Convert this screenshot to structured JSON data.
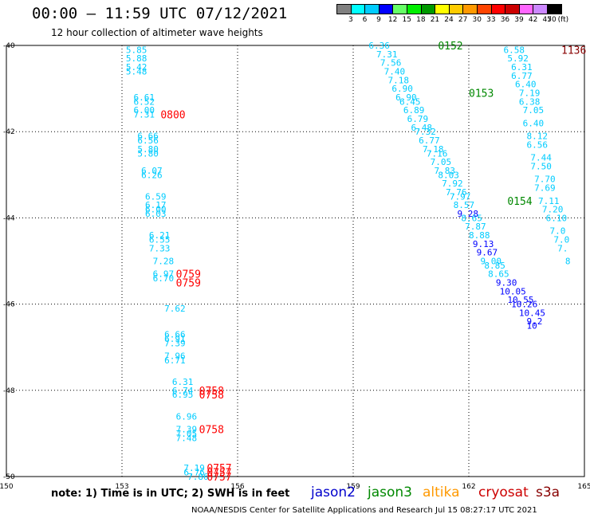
{
  "header": {
    "title": "00:00 – 11:59 UTC 07/12/2021",
    "subtitle": "12 hour collection of altimeter wave heights"
  },
  "colorbar": {
    "unit": "(ft)",
    "labels": [
      "3",
      "6",
      "9",
      "12",
      "15",
      "18",
      "21",
      "24",
      "27",
      "30",
      "33",
      "36",
      "39",
      "42",
      "45",
      "70"
    ],
    "colors": [
      "#808080",
      "#00ffff",
      "#00ccff",
      "#0000ff",
      "#66ff66",
      "#00ee00",
      "#009900",
      "#ffff00",
      "#ffcc00",
      "#ff9900",
      "#ff4400",
      "#ff0000",
      "#cc0000",
      "#ff66ff",
      "#cc88ff",
      "#000000"
    ]
  },
  "axes": {
    "x_ticks": [
      "150",
      "153",
      "156",
      "159",
      "162",
      "165"
    ],
    "y_ticks": [
      "-40",
      "-42",
      "-44",
      "-46",
      "-48",
      "-50"
    ]
  },
  "legend": [
    {
      "name": "jason2",
      "color": "#0000cc"
    },
    {
      "name": "jason3",
      "color": "#008800"
    },
    {
      "name": "altika",
      "color": "#ff9900"
    },
    {
      "name": "cryosat",
      "color": "#cc0000"
    },
    {
      "name": "s3a",
      "color": "#880000"
    }
  ],
  "footer": {
    "note": "note:  1) Time is in UTC;  2) SWH is in feet",
    "credit": "NOAA/NESDIS Center for Satellite Applications and Research    Jul 15 08:27:17 UTC 2021"
  },
  "chart_data": {
    "type": "scatter",
    "xlim": [
      150,
      165
    ],
    "ylim": [
      -50,
      -40
    ],
    "x_label_text": "",
    "y_label_text": "",
    "time_labels": [
      {
        "text": "0152",
        "lon": 161.2,
        "lat": -40.0,
        "color": "#008800"
      },
      {
        "text": "0153",
        "lon": 162.0,
        "lat": -41.1,
        "color": "#008800"
      },
      {
        "text": "0154",
        "lon": 163.0,
        "lat": -43.6,
        "color": "#008800"
      },
      {
        "text": "1136",
        "lon": 164.4,
        "lat": -40.1,
        "color": "#880000"
      },
      {
        "text": "0800",
        "lon": 154.0,
        "lat": -41.6,
        "color": "#ff0000"
      },
      {
        "text": "0759",
        "lon": 154.4,
        "lat": -45.3,
        "color": "#ff0000"
      },
      {
        "text": "0759",
        "lon": 154.4,
        "lat": -45.5,
        "color": "#ff0000"
      },
      {
        "text": "0758",
        "lon": 155.0,
        "lat": -48.0,
        "color": "#ff0000"
      },
      {
        "text": "0758",
        "lon": 155.0,
        "lat": -48.1,
        "color": "#ff0000"
      },
      {
        "text": "0758",
        "lon": 155.0,
        "lat": -48.9,
        "color": "#ff0000"
      },
      {
        "text": "0757",
        "lon": 155.2,
        "lat": -49.8,
        "color": "#ff0000"
      },
      {
        "text": "0757",
        "lon": 155.2,
        "lat": -49.9,
        "color": "#ff0000"
      },
      {
        "text": "0757",
        "lon": 155.2,
        "lat": -50.0,
        "color": "#ff0000"
      }
    ],
    "points": [
      {
        "v": "5.85",
        "lon": 153.1,
        "lat": -40.1,
        "color": "#00ccff"
      },
      {
        "v": "5.88",
        "lon": 153.1,
        "lat": -40.3,
        "color": "#00ccff"
      },
      {
        "v": "5.42",
        "lon": 153.1,
        "lat": -40.5,
        "color": "#00ccff"
      },
      {
        "v": "5.48",
        "lon": 153.1,
        "lat": -40.6,
        "color": "#00ccff"
      },
      {
        "v": "6.61",
        "lon": 153.3,
        "lat": -41.2,
        "color": "#00ccff"
      },
      {
        "v": "6.52",
        "lon": 153.3,
        "lat": -41.3,
        "color": "#00ccff"
      },
      {
        "v": "6.00",
        "lon": 153.3,
        "lat": -41.5,
        "color": "#00ccff"
      },
      {
        "v": "7.31",
        "lon": 153.3,
        "lat": -41.6,
        "color": "#00ccff"
      },
      {
        "v": "6.66",
        "lon": 153.4,
        "lat": -42.1,
        "color": "#00ccff"
      },
      {
        "v": "6.56",
        "lon": 153.4,
        "lat": -42.2,
        "color": "#00ccff"
      },
      {
        "v": "5.80",
        "lon": 153.4,
        "lat": -42.4,
        "color": "#00ccff"
      },
      {
        "v": "5.80",
        "lon": 153.4,
        "lat": -42.5,
        "color": "#00ccff"
      },
      {
        "v": "6.07",
        "lon": 153.5,
        "lat": -42.9,
        "color": "#00ccff"
      },
      {
        "v": "6.26",
        "lon": 153.5,
        "lat": -43.0,
        "color": "#00ccff"
      },
      {
        "v": "6.59",
        "lon": 153.6,
        "lat": -43.5,
        "color": "#00ccff"
      },
      {
        "v": "6.17",
        "lon": 153.6,
        "lat": -43.7,
        "color": "#00ccff"
      },
      {
        "v": "6.00",
        "lon": 153.6,
        "lat": -43.8,
        "color": "#00ccff"
      },
      {
        "v": "6.03",
        "lon": 153.6,
        "lat": -43.9,
        "color": "#00ccff"
      },
      {
        "v": "6.21",
        "lon": 153.7,
        "lat": -44.4,
        "color": "#00ccff"
      },
      {
        "v": "6.55",
        "lon": 153.7,
        "lat": -44.5,
        "color": "#00ccff"
      },
      {
        "v": "7.33",
        "lon": 153.7,
        "lat": -44.7,
        "color": "#00ccff"
      },
      {
        "v": "7.28",
        "lon": 153.8,
        "lat": -45.0,
        "color": "#00ccff"
      },
      {
        "v": "6.97",
        "lon": 153.8,
        "lat": -45.3,
        "color": "#00ccff"
      },
      {
        "v": "6.70",
        "lon": 153.8,
        "lat": -45.4,
        "color": "#00ccff"
      },
      {
        "v": "7.62",
        "lon": 154.1,
        "lat": -46.1,
        "color": "#00ccff"
      },
      {
        "v": "6.66",
        "lon": 154.1,
        "lat": -46.7,
        "color": "#00ccff"
      },
      {
        "v": "6.91",
        "lon": 154.1,
        "lat": -46.8,
        "color": "#00ccff"
      },
      {
        "v": "7.39",
        "lon": 154.1,
        "lat": -46.9,
        "color": "#00ccff"
      },
      {
        "v": "7.96",
        "lon": 154.1,
        "lat": -47.2,
        "color": "#00ccff"
      },
      {
        "v": "6.71",
        "lon": 154.1,
        "lat": -47.3,
        "color": "#00ccff"
      },
      {
        "v": "6.31",
        "lon": 154.3,
        "lat": -47.8,
        "color": "#00ccff"
      },
      {
        "v": "6.74",
        "lon": 154.3,
        "lat": -48.0,
        "color": "#00ccff"
      },
      {
        "v": "6.95",
        "lon": 154.3,
        "lat": -48.1,
        "color": "#00ccff"
      },
      {
        "v": "6.96",
        "lon": 154.4,
        "lat": -48.6,
        "color": "#00ccff"
      },
      {
        "v": "7.39",
        "lon": 154.4,
        "lat": -48.9,
        "color": "#00ccff"
      },
      {
        "v": "7.05",
        "lon": 154.4,
        "lat": -49.0,
        "color": "#00ccff"
      },
      {
        "v": "7.48",
        "lon": 154.4,
        "lat": -49.1,
        "color": "#00ccff"
      },
      {
        "v": "7.19",
        "lon": 154.6,
        "lat": -49.8,
        "color": "#00ccff"
      },
      {
        "v": "6.76",
        "lon": 154.6,
        "lat": -49.9,
        "color": "#00ccff"
      },
      {
        "v": "7.86",
        "lon": 154.7,
        "lat": -50.0,
        "color": "#00ccff"
      },
      {
        "v": "6.36",
        "lon": 159.4,
        "lat": -40.0,
        "color": "#00ccff"
      },
      {
        "v": "7.31",
        "lon": 159.6,
        "lat": -40.2,
        "color": "#00ccff"
      },
      {
        "v": "7.56",
        "lon": 159.7,
        "lat": -40.4,
        "color": "#00ccff"
      },
      {
        "v": "7.40",
        "lon": 159.8,
        "lat": -40.6,
        "color": "#00ccff"
      },
      {
        "v": "7.18",
        "lon": 159.9,
        "lat": -40.8,
        "color": "#00ccff"
      },
      {
        "v": "6.90",
        "lon": 160.0,
        "lat": -41.0,
        "color": "#00ccff"
      },
      {
        "v": "6.90",
        "lon": 160.1,
        "lat": -41.2,
        "color": "#00ccff"
      },
      {
        "v": "6.45",
        "lon": 160.2,
        "lat": -41.3,
        "color": "#00ccff"
      },
      {
        "v": "6.89",
        "lon": 160.3,
        "lat": -41.5,
        "color": "#00ccff"
      },
      {
        "v": "6.79",
        "lon": 160.4,
        "lat": -41.7,
        "color": "#00ccff"
      },
      {
        "v": "6.48",
        "lon": 160.5,
        "lat": -41.9,
        "color": "#00ccff"
      },
      {
        "v": "7.32",
        "lon": 160.6,
        "lat": -42.0,
        "color": "#00ccff"
      },
      {
        "v": "6.77",
        "lon": 160.7,
        "lat": -42.2,
        "color": "#00ccff"
      },
      {
        "v": "7.18",
        "lon": 160.8,
        "lat": -42.4,
        "color": "#00ccff"
      },
      {
        "v": "7.16",
        "lon": 160.9,
        "lat": -42.5,
        "color": "#00ccff"
      },
      {
        "v": "7.05",
        "lon": 161.0,
        "lat": -42.7,
        "color": "#00ccff"
      },
      {
        "v": "7.83",
        "lon": 161.1,
        "lat": -42.9,
        "color": "#00ccff"
      },
      {
        "v": "8.03",
        "lon": 161.2,
        "lat": -43.0,
        "color": "#00ccff"
      },
      {
        "v": "7.92",
        "lon": 161.3,
        "lat": -43.2,
        "color": "#00ccff"
      },
      {
        "v": "7.76",
        "lon": 161.4,
        "lat": -43.4,
        "color": "#00ccff"
      },
      {
        "v": "7.97",
        "lon": 161.5,
        "lat": -43.5,
        "color": "#00ccff"
      },
      {
        "v": "8.57",
        "lon": 161.6,
        "lat": -43.7,
        "color": "#00ccff"
      },
      {
        "v": "9.28",
        "lon": 161.7,
        "lat": -43.9,
        "color": "#0000ff"
      },
      {
        "v": "8.65",
        "lon": 161.8,
        "lat": -44.0,
        "color": "#00ccff"
      },
      {
        "v": "7.87",
        "lon": 161.9,
        "lat": -44.2,
        "color": "#00ccff"
      },
      {
        "v": "8.88",
        "lon": 162.0,
        "lat": -44.4,
        "color": "#00ccff"
      },
      {
        "v": "9.13",
        "lon": 162.1,
        "lat": -44.6,
        "color": "#0000ff"
      },
      {
        "v": "9.67",
        "lon": 162.2,
        "lat": -44.8,
        "color": "#0000ff"
      },
      {
        "v": "9.00",
        "lon": 162.3,
        "lat": -45.0,
        "color": "#00ccff"
      },
      {
        "v": "8.85",
        "lon": 162.4,
        "lat": -45.1,
        "color": "#00ccff"
      },
      {
        "v": "8.65",
        "lon": 162.5,
        "lat": -45.3,
        "color": "#00ccff"
      },
      {
        "v": "9.30",
        "lon": 162.7,
        "lat": -45.5,
        "color": "#0000ff"
      },
      {
        "v": "10.05",
        "lon": 162.8,
        "lat": -45.7,
        "color": "#0000ff"
      },
      {
        "v": "10.55",
        "lon": 163.0,
        "lat": -45.9,
        "color": "#0000ff"
      },
      {
        "v": "10.26",
        "lon": 163.1,
        "lat": -46.0,
        "color": "#0000ff"
      },
      {
        "v": "10.45",
        "lon": 163.3,
        "lat": -46.2,
        "color": "#0000ff"
      },
      {
        "v": "9.2",
        "lon": 163.5,
        "lat": -46.4,
        "color": "#0000ff"
      },
      {
        "v": "10",
        "lon": 163.5,
        "lat": -46.5,
        "color": "#0000ff"
      },
      {
        "v": "6.58",
        "lon": 162.9,
        "lat": -40.1,
        "color": "#00ccff"
      },
      {
        "v": "5.92",
        "lon": 163.0,
        "lat": -40.3,
        "color": "#00ccff"
      },
      {
        "v": "6.31",
        "lon": 163.1,
        "lat": -40.5,
        "color": "#00ccff"
      },
      {
        "v": "6.77",
        "lon": 163.1,
        "lat": -40.7,
        "color": "#00ccff"
      },
      {
        "v": "6.40",
        "lon": 163.2,
        "lat": -40.9,
        "color": "#00ccff"
      },
      {
        "v": "7.19",
        "lon": 163.3,
        "lat": -41.1,
        "color": "#00ccff"
      },
      {
        "v": "6.38",
        "lon": 163.3,
        "lat": -41.3,
        "color": "#00ccff"
      },
      {
        "v": "7.05",
        "lon": 163.4,
        "lat": -41.5,
        "color": "#00ccff"
      },
      {
        "v": "6.40",
        "lon": 163.4,
        "lat": -41.8,
        "color": "#00ccff"
      },
      {
        "v": "8.12",
        "lon": 163.5,
        "lat": -42.1,
        "color": "#00ccff"
      },
      {
        "v": "6.56",
        "lon": 163.5,
        "lat": -42.3,
        "color": "#00ccff"
      },
      {
        "v": "7.44",
        "lon": 163.6,
        "lat": -42.6,
        "color": "#00ccff"
      },
      {
        "v": "7.50",
        "lon": 163.6,
        "lat": -42.8,
        "color": "#00ccff"
      },
      {
        "v": "7.70",
        "lon": 163.7,
        "lat": -43.1,
        "color": "#00ccff"
      },
      {
        "v": "7.69",
        "lon": 163.7,
        "lat": -43.3,
        "color": "#00ccff"
      },
      {
        "v": "7.11",
        "lon": 163.8,
        "lat": -43.6,
        "color": "#00ccff"
      },
      {
        "v": "7.20",
        "lon": 163.9,
        "lat": -43.8,
        "color": "#00ccff"
      },
      {
        "v": "6.10",
        "lon": 164.0,
        "lat": -44.0,
        "color": "#00ccff"
      },
      {
        "v": "7.0",
        "lon": 164.1,
        "lat": -44.3,
        "color": "#00ccff"
      },
      {
        "v": "7.0",
        "lon": 164.2,
        "lat": -44.5,
        "color": "#00ccff"
      },
      {
        "v": "7.",
        "lon": 164.3,
        "lat": -44.7,
        "color": "#00ccff"
      },
      {
        "v": "8",
        "lon": 164.5,
        "lat": -45.0,
        "color": "#00ccff"
      }
    ]
  }
}
